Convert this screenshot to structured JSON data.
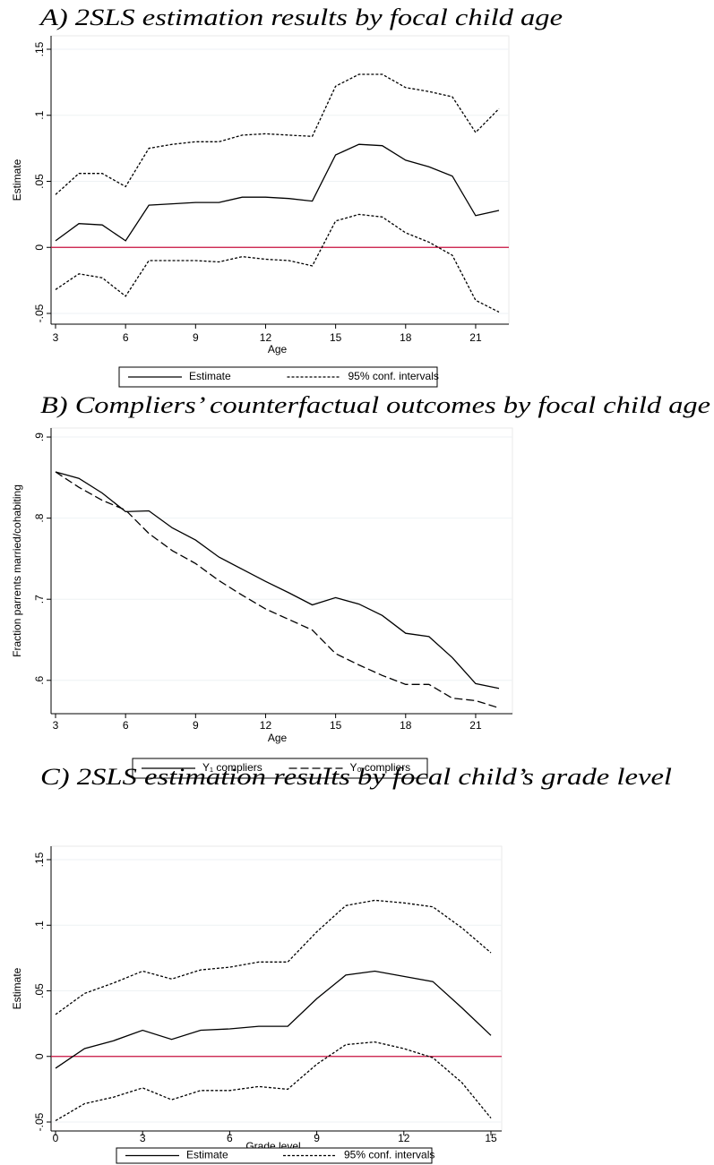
{
  "chart_data": [
    {
      "type": "line",
      "title": "A)  2SLS estimation results by focal child age",
      "x_label": "Age",
      "y_label": "Estimate",
      "x": [
        3,
        4,
        5,
        6,
        7,
        8,
        9,
        10,
        11,
        12,
        13,
        14,
        15,
        16,
        17,
        18,
        19,
        20,
        21,
        22
      ],
      "series": [
        {
          "name": "Estimate",
          "color": "#000000",
          "style": "solid",
          "values": [
            0.005,
            0.018,
            0.017,
            0.005,
            0.032,
            0.033,
            0.034,
            0.034,
            0.038,
            0.038,
            0.037,
            0.035,
            0.07,
            0.078,
            0.077,
            0.066,
            0.061,
            0.054,
            0.024,
            0.028
          ]
        },
        {
          "name": "95% conf. intervals",
          "color": "#000000",
          "style": "dashed",
          "upper": [
            0.04,
            0.056,
            0.056,
            0.046,
            0.075,
            0.078,
            0.08,
            0.08,
            0.085,
            0.086,
            0.085,
            0.084,
            0.122,
            0.131,
            0.131,
            0.121,
            0.118,
            0.114,
            0.087,
            0.105
          ],
          "lower": [
            -0.032,
            -0.02,
            -0.023,
            -0.037,
            -0.01,
            -0.01,
            -0.01,
            -0.011,
            -0.007,
            -0.009,
            -0.01,
            -0.014,
            0.02,
            0.025,
            0.023,
            0.011,
            0.004,
            -0.006,
            -0.04,
            -0.049
          ]
        }
      ],
      "reference_line": 0,
      "reference_color": "#c8103e",
      "xlim": [
        3,
        22
      ],
      "xticks": [
        3,
        6,
        9,
        12,
        15,
        18,
        21
      ],
      "ylim": [
        -0.05,
        0.15
      ],
      "yticks": [
        {
          "value": -0.05,
          "label": "-.05"
        },
        0,
        {
          "value": 0.05,
          "label": ".05"
        },
        {
          "value": 0.1,
          "label": ".1"
        },
        {
          "value": 0.15,
          "label": ".15"
        }
      ],
      "grid": true
    },
    {
      "type": "line",
      "title": "B)  Compliers’ counterfactual outcomes by focal child age",
      "x_label": "Age",
      "y_label": "Fraction parrents married/cohabiting",
      "x": [
        3,
        4,
        5,
        6,
        7,
        8,
        9,
        10,
        11,
        12,
        13,
        14,
        15,
        16,
        17,
        18,
        19,
        20,
        21,
        22
      ],
      "series": [
        {
          "name": "Y₁ compliers",
          "color": "#000000",
          "style": "solid",
          "values": [
            0.857,
            0.849,
            0.831,
            0.808,
            0.809,
            0.788,
            0.773,
            0.752,
            0.737,
            0.722,
            0.708,
            0.693,
            0.702,
            0.694,
            0.68,
            0.658,
            0.654,
            0.628,
            0.596,
            0.59
          ]
        },
        {
          "name": "Y₀ compliers",
          "color": "#000000",
          "style": "longdash",
          "values": [
            0.857,
            0.838,
            0.822,
            0.81,
            0.781,
            0.76,
            0.744,
            0.723,
            0.705,
            0.688,
            0.675,
            0.662,
            0.633,
            0.619,
            0.606,
            0.595,
            0.595,
            0.578,
            0.575,
            0.566
          ]
        }
      ],
      "xlim": [
        3,
        22
      ],
      "xticks": [
        3,
        6,
        9,
        12,
        15,
        18,
        21
      ],
      "ylim": [
        0.56,
        0.91
      ],
      "yticks": [
        {
          "value": 0.6,
          "label": ".6"
        },
        {
          "value": 0.7,
          "label": ".7"
        },
        {
          "value": 0.8,
          "label": ".8"
        },
        {
          "value": 0.9,
          "label": ".9"
        }
      ],
      "grid": true
    },
    {
      "type": "line",
      "title": "C)  2SLS estimation results by focal child’s grade level",
      "x_label": "Grade level",
      "y_label": "Estimate",
      "x": [
        0,
        1,
        2,
        3,
        4,
        5,
        6,
        7,
        8,
        9,
        10,
        11,
        12,
        13,
        14,
        15
      ],
      "series": [
        {
          "name": "Estimate",
          "color": "#000000",
          "style": "solid",
          "values": [
            -0.009,
            0.006,
            0.012,
            0.02,
            0.013,
            0.02,
            0.021,
            0.023,
            0.023,
            0.044,
            0.062,
            0.065,
            0.061,
            0.057,
            0.037,
            0.016
          ]
        },
        {
          "name": "95% conf. intervals",
          "color": "#000000",
          "style": "dashed",
          "upper": [
            0.032,
            0.048,
            0.056,
            0.065,
            0.059,
            0.066,
            0.068,
            0.072,
            0.072,
            0.095,
            0.115,
            0.119,
            0.117,
            0.114,
            0.098,
            0.079
          ],
          "lower": [
            -0.049,
            -0.036,
            -0.031,
            -0.024,
            -0.033,
            -0.026,
            -0.026,
            -0.023,
            -0.025,
            -0.006,
            0.009,
            0.011,
            0.006,
            -0.001,
            -0.02,
            -0.047
          ]
        }
      ],
      "reference_line": 0,
      "reference_color": "#c8103e",
      "xlim": [
        0,
        15
      ],
      "xticks": [
        0,
        3,
        6,
        9,
        12,
        15
      ],
      "ylim": [
        -0.05,
        0.15
      ],
      "yticks": [
        {
          "value": -0.05,
          "label": "-.05"
        },
        0,
        {
          "value": 0.05,
          "label": ".05"
        },
        {
          "value": 0.1,
          "label": ".1"
        },
        {
          "value": 0.15,
          "label": ".15"
        }
      ],
      "grid": true
    }
  ]
}
